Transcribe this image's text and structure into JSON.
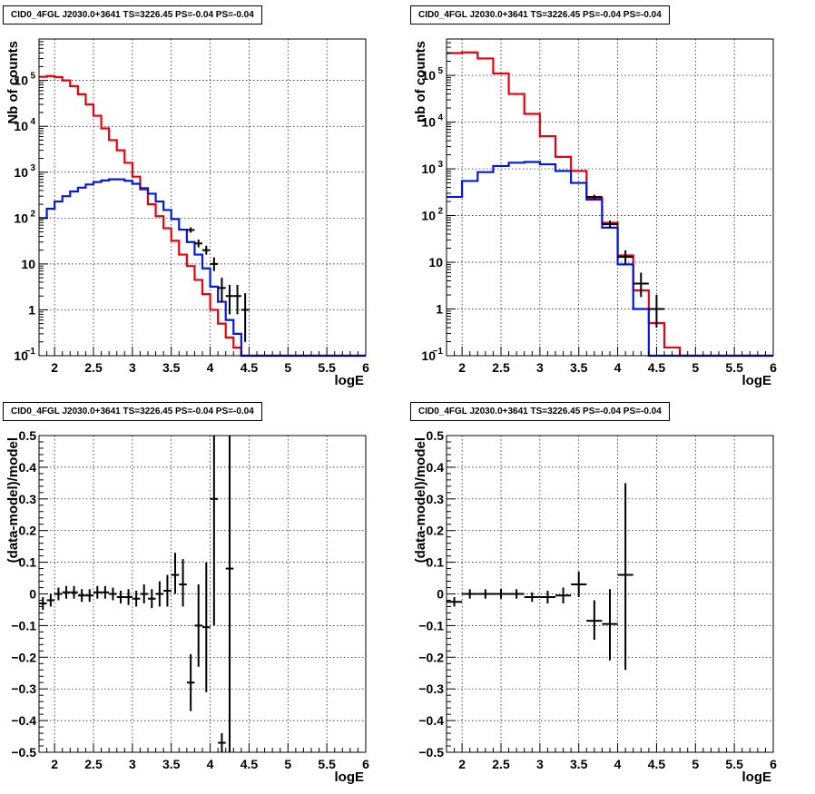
{
  "chart_data": [
    {
      "id": "p1",
      "type": "step",
      "title": "CID0_4FGL J2030.0+3641 TS=3226.45 PS=-0.04 PS=-0.04",
      "xlabel": "logE",
      "ylabel": "Nb of counts",
      "xlim": [
        1.8,
        6.0
      ],
      "ylim": [
        0.1,
        800000
      ],
      "yscale": "log",
      "grid": true,
      "xticks": [
        2,
        2.5,
        3,
        3.5,
        4,
        4.5,
        5,
        5.5,
        6
      ],
      "xtick_labels": [
        "2",
        "2.5",
        "3",
        "3.5",
        "4",
        "4.5",
        "5",
        "5.5",
        "6"
      ],
      "yticks": [
        {
          "v": 0.1,
          "base": "10",
          "exp": "−1"
        },
        {
          "v": 1,
          "base": "1",
          "exp": ""
        },
        {
          "v": 10,
          "base": "10",
          "exp": ""
        },
        {
          "v": 100,
          "base": "10",
          "exp": "2"
        },
        {
          "v": 1000,
          "base": "10",
          "exp": "3"
        },
        {
          "v": 10000,
          "base": "10",
          "exp": "4"
        },
        {
          "v": 100000,
          "base": "10",
          "exp": "5"
        }
      ],
      "bin_width": 0.1,
      "series": [
        {
          "color": "#e8000b",
          "x": [
            1.8,
            1.9,
            2.0,
            2.1,
            2.2,
            2.3,
            2.4,
            2.5,
            2.6,
            2.7,
            2.8,
            2.9,
            3.0,
            3.1,
            3.2,
            3.3,
            3.4,
            3.5,
            3.6,
            3.7,
            3.8,
            3.9,
            4.0,
            4.1,
            4.2,
            4.3,
            4.4,
            4.5,
            4.6,
            4.7,
            4.8,
            4.9,
            5.0,
            5.1,
            5.2,
            5.3,
            5.4,
            5.5,
            5.6,
            5.7,
            5.8,
            5.9
          ],
          "y": [
            120000,
            125000,
            118000,
            100000,
            75000,
            50000,
            30000,
            17000,
            9000,
            5000,
            3000,
            1600,
            800,
            420,
            200,
            110,
            60,
            32,
            16,
            9,
            4.5,
            2.2,
            1.0,
            0.5,
            0.25,
            0.15,
            0.1,
            0.1,
            0.1,
            0.1,
            0.1,
            0.1,
            0.1,
            0.1,
            0.1,
            0.1,
            0.1,
            0.1,
            0.1,
            0.1,
            0.1,
            0.1
          ]
        },
        {
          "color": "#0018e0",
          "x": [
            1.8,
            1.9,
            2.0,
            2.1,
            2.2,
            2.3,
            2.4,
            2.5,
            2.6,
            2.7,
            2.8,
            2.9,
            3.0,
            3.1,
            3.2,
            3.3,
            3.4,
            3.5,
            3.6,
            3.7,
            3.8,
            3.9,
            4.0,
            4.1,
            4.2,
            4.3,
            4.4,
            4.5,
            4.6,
            4.7,
            4.8,
            4.9,
            5.0,
            5.1,
            5.2,
            5.3,
            5.4,
            5.5,
            5.6,
            5.7,
            5.8,
            5.9
          ],
          "y": [
            100,
            160,
            230,
            300,
            380,
            460,
            540,
            610,
            660,
            700,
            700,
            650,
            560,
            450,
            340,
            230,
            150,
            95,
            56,
            30,
            16,
            8,
            3.2,
            1.5,
            0.6,
            0.3,
            0.1,
            0.1,
            0.1,
            0.1,
            0.1,
            0.1,
            0.1,
            0.1,
            0.1,
            0.1,
            0.1,
            0.1,
            0.1,
            0.1,
            0.1,
            0.1
          ]
        }
      ],
      "points": [
        {
          "x": 3.75,
          "y": 55,
          "xerr": 0.05,
          "ylo": 48,
          "yhi": 63
        },
        {
          "x": 3.85,
          "y": 28,
          "xerr": 0.05,
          "ylo": 23,
          "yhi": 34
        },
        {
          "x": 3.95,
          "y": 20,
          "xerr": 0.05,
          "ylo": 16,
          "yhi": 25
        },
        {
          "x": 4.05,
          "y": 10,
          "xerr": 0.05,
          "ylo": 7,
          "yhi": 14
        },
        {
          "x": 4.15,
          "y": 3,
          "xerr": 0.05,
          "ylo": 1.5,
          "yhi": 5
        },
        {
          "x": 4.25,
          "y": 2,
          "xerr": 0.05,
          "ylo": 0.8,
          "yhi": 3.5
        },
        {
          "x": 4.35,
          "y": 2,
          "xerr": 0.05,
          "ylo": 0.8,
          "yhi": 3.5
        },
        {
          "x": 4.45,
          "y": 1,
          "xerr": 0.05,
          "ylo": 0.2,
          "yhi": 2.3
        }
      ]
    },
    {
      "id": "p2",
      "type": "step",
      "title": "CID0_4FGL J2030.0+3641 TS=3226.45 PS=-0.04 PS=-0.04",
      "xlabel": "logE",
      "ylabel": "nb of counts",
      "xlim": [
        1.8,
        6.0
      ],
      "ylim": [
        0.1,
        600000
      ],
      "yscale": "log",
      "grid": true,
      "xticks": [
        2,
        2.5,
        3,
        3.5,
        4,
        4.5,
        5,
        5.5,
        6
      ],
      "xtick_labels": [
        "2",
        "2.5",
        "3",
        "3.5",
        "4",
        "4.5",
        "5",
        "5.5",
        "6"
      ],
      "yticks": [
        {
          "v": 0.1,
          "base": "10",
          "exp": "−1"
        },
        {
          "v": 1,
          "base": "1",
          "exp": ""
        },
        {
          "v": 10,
          "base": "10",
          "exp": ""
        },
        {
          "v": 100,
          "base": "10",
          "exp": "2"
        },
        {
          "v": 1000,
          "base": "10",
          "exp": "3"
        },
        {
          "v": 10000,
          "base": "10",
          "exp": "4"
        },
        {
          "v": 100000,
          "base": "10",
          "exp": "5"
        }
      ],
      "bin_width": 0.2,
      "series": [
        {
          "color": "#e8000b",
          "x": [
            1.8,
            2.0,
            2.2,
            2.4,
            2.6,
            2.8,
            3.0,
            3.2,
            3.4,
            3.6,
            3.8,
            4.0,
            4.2,
            4.4,
            4.6,
            4.8,
            5.0,
            5.2,
            5.4,
            5.6,
            5.8
          ],
          "y": [
            300000,
            310000,
            230000,
            110000,
            40000,
            15000,
            5000,
            1800,
            900,
            240,
            70,
            14,
            2.5,
            0.5,
            0.15,
            0.1,
            0.1,
            0.1,
            0.1,
            0.1,
            0.1
          ]
        },
        {
          "color": "#0018e0",
          "x": [
            1.8,
            2.0,
            2.2,
            2.4,
            2.6,
            2.8,
            3.0,
            3.2,
            3.4,
            3.6,
            3.8,
            4.0,
            4.2,
            4.4,
            4.6,
            4.8,
            5.0,
            5.2,
            5.4,
            5.6,
            5.8
          ],
          "y": [
            250,
            550,
            850,
            1150,
            1350,
            1400,
            1250,
            900,
            500,
            220,
            55,
            9,
            1,
            0.1,
            0.1,
            0.1,
            0.1,
            0.1,
            0.1,
            0.1,
            0.1
          ]
        }
      ],
      "points": [
        {
          "x": 3.7,
          "y": 250,
          "xerr": 0.1,
          "ylo": 220,
          "yhi": 280
        },
        {
          "x": 3.9,
          "y": 65,
          "xerr": 0.1,
          "ylo": 55,
          "yhi": 78
        },
        {
          "x": 4.1,
          "y": 13,
          "xerr": 0.1,
          "ylo": 9,
          "yhi": 18
        },
        {
          "x": 4.3,
          "y": 3.5,
          "xerr": 0.1,
          "ylo": 1.8,
          "yhi": 6
        },
        {
          "x": 4.5,
          "y": 1,
          "xerr": 0.1,
          "ylo": 0.4,
          "yhi": 2
        }
      ]
    },
    {
      "id": "p3",
      "type": "scatter",
      "title": "CID0_4FGL J2030.0+3641 TS=3226.45 PS=-0.04 PS=-0.04",
      "xlabel": "logE",
      "ylabel": "(data-model)/model",
      "xlim": [
        1.8,
        6.0
      ],
      "ylim": [
        -0.5,
        0.5
      ],
      "yscale": "linear",
      "grid": true,
      "xticks": [
        2,
        2.5,
        3,
        3.5,
        4,
        4.5,
        5,
        5.5,
        6
      ],
      "xtick_labels": [
        "2",
        "2.5",
        "3",
        "3.5",
        "4",
        "4.5",
        "5",
        "5.5",
        "6"
      ],
      "yticks": [
        {
          "v": -0.5,
          "label": "−0.5"
        },
        {
          "v": -0.4,
          "label": "−0.4"
        },
        {
          "v": -0.3,
          "label": "−0.3"
        },
        {
          "v": -0.2,
          "label": "−0.2"
        },
        {
          "v": -0.1,
          "label": "−0.1"
        },
        {
          "v": 0,
          "label": "0"
        },
        {
          "v": 0.1,
          "label": "0.1"
        },
        {
          "v": 0.2,
          "label": "0.2"
        },
        {
          "v": 0.3,
          "label": "0.3"
        },
        {
          "v": 0.4,
          "label": "0.4"
        },
        {
          "v": 0.5,
          "label": "0.5"
        }
      ],
      "points": [
        {
          "x": 1.85,
          "y": -0.03,
          "xerr": 0.05,
          "ylo": -0.05,
          "yhi": -0.01
        },
        {
          "x": 1.95,
          "y": -0.02,
          "xerr": 0.05,
          "ylo": -0.04,
          "yhi": 0.0
        },
        {
          "x": 2.05,
          "y": 0.0,
          "xerr": 0.05,
          "ylo": -0.02,
          "yhi": 0.02
        },
        {
          "x": 2.15,
          "y": 0.005,
          "xerr": 0.05,
          "ylo": -0.015,
          "yhi": 0.025
        },
        {
          "x": 2.25,
          "y": 0.005,
          "xerr": 0.05,
          "ylo": -0.015,
          "yhi": 0.025
        },
        {
          "x": 2.35,
          "y": -0.005,
          "xerr": 0.05,
          "ylo": -0.025,
          "yhi": 0.015
        },
        {
          "x": 2.45,
          "y": -0.005,
          "xerr": 0.05,
          "ylo": -0.025,
          "yhi": 0.015
        },
        {
          "x": 2.55,
          "y": 0.005,
          "xerr": 0.05,
          "ylo": -0.015,
          "yhi": 0.025
        },
        {
          "x": 2.65,
          "y": 0.005,
          "xerr": 0.05,
          "ylo": -0.015,
          "yhi": 0.025
        },
        {
          "x": 2.75,
          "y": 0.0,
          "xerr": 0.05,
          "ylo": -0.02,
          "yhi": 0.02
        },
        {
          "x": 2.85,
          "y": -0.01,
          "xerr": 0.05,
          "ylo": -0.03,
          "yhi": 0.01
        },
        {
          "x": 2.95,
          "y": -0.01,
          "xerr": 0.05,
          "ylo": -0.035,
          "yhi": 0.015
        },
        {
          "x": 3.05,
          "y": -0.015,
          "xerr": 0.05,
          "ylo": -0.04,
          "yhi": 0.01
        },
        {
          "x": 3.15,
          "y": 0.0,
          "xerr": 0.05,
          "ylo": -0.03,
          "yhi": 0.03
        },
        {
          "x": 3.25,
          "y": -0.015,
          "xerr": 0.05,
          "ylo": -0.045,
          "yhi": 0.015
        },
        {
          "x": 3.35,
          "y": 0.0,
          "xerr": 0.05,
          "ylo": -0.04,
          "yhi": 0.04
        },
        {
          "x": 3.45,
          "y": 0.01,
          "xerr": 0.05,
          "ylo": -0.04,
          "yhi": 0.06
        },
        {
          "x": 3.55,
          "y": 0.06,
          "xerr": 0.05,
          "ylo": 0.0,
          "yhi": 0.13
        },
        {
          "x": 3.65,
          "y": 0.03,
          "xerr": 0.05,
          "ylo": -0.04,
          "yhi": 0.11
        },
        {
          "x": 3.75,
          "y": -0.28,
          "xerr": 0.05,
          "ylo": -0.37,
          "yhi": -0.19
        },
        {
          "x": 3.85,
          "y": -0.1,
          "xerr": 0.05,
          "ylo": -0.23,
          "yhi": 0.03
        },
        {
          "x": 3.95,
          "y": -0.105,
          "xerr": 0.05,
          "ylo": -0.31,
          "yhi": 0.1
        },
        {
          "x": 4.05,
          "y": 0.3,
          "xerr": 0.05,
          "ylo": -0.1,
          "yhi": 0.5
        },
        {
          "x": 4.15,
          "y": -0.47,
          "xerr": 0.05,
          "ylo": -0.5,
          "yhi": -0.44
        },
        {
          "x": 4.25,
          "y": 0.08,
          "xerr": 0.05,
          "ylo": -0.5,
          "yhi": 0.5
        }
      ]
    },
    {
      "id": "p4",
      "type": "scatter",
      "title": "CID0_4FGL J2030.0+3641 TS=3226.45 PS=-0.04 PS=-0.04",
      "xlabel": "logE",
      "ylabel": "(data-model)/model",
      "xlim": [
        1.8,
        6.0
      ],
      "ylim": [
        -0.5,
        0.5
      ],
      "yscale": "linear",
      "grid": true,
      "xticks": [
        2,
        2.5,
        3,
        3.5,
        4,
        4.5,
        5,
        5.5,
        6
      ],
      "xtick_labels": [
        "2",
        "2.5",
        "3",
        "3.5",
        "4",
        "4.5",
        "5",
        "5.5",
        "6"
      ],
      "yticks": [
        {
          "v": -0.5,
          "label": "−0.5"
        },
        {
          "v": -0.4,
          "label": "−0.4"
        },
        {
          "v": -0.3,
          "label": "−0.3"
        },
        {
          "v": -0.2,
          "label": "−0.2"
        },
        {
          "v": -0.1,
          "label": "−0.1"
        },
        {
          "v": 0,
          "label": "0"
        },
        {
          "v": 0.1,
          "label": "0.1"
        },
        {
          "v": 0.2,
          "label": "0.2"
        },
        {
          "v": 0.3,
          "label": "0.3"
        },
        {
          "v": 0.4,
          "label": "0.4"
        },
        {
          "v": 0.5,
          "label": "0.5"
        }
      ],
      "points": [
        {
          "x": 1.9,
          "y": -0.025,
          "xerr": 0.1,
          "ylo": -0.04,
          "yhi": -0.01
        },
        {
          "x": 2.1,
          "y": 0.0,
          "xerr": 0.1,
          "ylo": -0.015,
          "yhi": 0.015
        },
        {
          "x": 2.3,
          "y": 0.0,
          "xerr": 0.1,
          "ylo": -0.015,
          "yhi": 0.015
        },
        {
          "x": 2.5,
          "y": 0.0,
          "xerr": 0.1,
          "ylo": -0.015,
          "yhi": 0.015
        },
        {
          "x": 2.7,
          "y": 0.0,
          "xerr": 0.1,
          "ylo": -0.015,
          "yhi": 0.015
        },
        {
          "x": 2.9,
          "y": -0.01,
          "xerr": 0.1,
          "ylo": -0.025,
          "yhi": 0.005
        },
        {
          "x": 3.1,
          "y": -0.01,
          "xerr": 0.1,
          "ylo": -0.03,
          "yhi": 0.01
        },
        {
          "x": 3.3,
          "y": -0.005,
          "xerr": 0.1,
          "ylo": -0.03,
          "yhi": 0.02
        },
        {
          "x": 3.5,
          "y": 0.03,
          "xerr": 0.1,
          "ylo": -0.01,
          "yhi": 0.07
        },
        {
          "x": 3.7,
          "y": -0.085,
          "xerr": 0.1,
          "ylo": -0.145,
          "yhi": -0.02
        },
        {
          "x": 3.9,
          "y": -0.095,
          "xerr": 0.1,
          "ylo": -0.21,
          "yhi": 0.015
        },
        {
          "x": 4.1,
          "y": 0.06,
          "xerr": 0.1,
          "ylo": -0.24,
          "yhi": 0.35
        }
      ]
    }
  ]
}
